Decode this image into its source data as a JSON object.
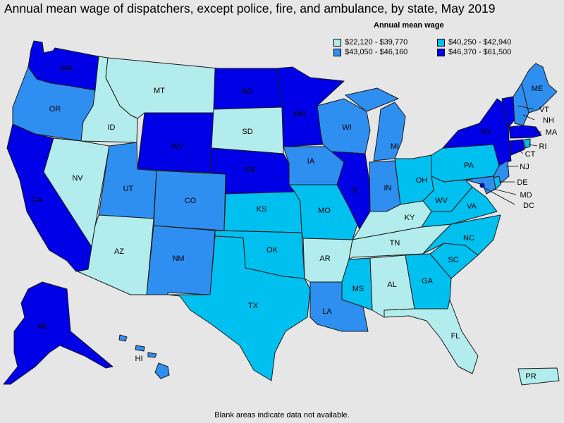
{
  "title": "Annual mean wage of dispatchers, except police, fire, and ambulance, by state, May 2019",
  "legend": {
    "title": "Annual mean wage",
    "items": [
      {
        "label": "$22,120 - $39,770",
        "color": "#b3ecec"
      },
      {
        "label": "$40,250 - $42,940",
        "color": "#00c0f0"
      },
      {
        "label": "$43,050 - $46,160",
        "color": "#2e8ff0"
      },
      {
        "label": "$46,370 - $61,500",
        "color": "#0000e6"
      }
    ]
  },
  "footnote": "Blank areas indicate data not available.",
  "states": {
    "WA": {
      "label": "WA",
      "bin": 3
    },
    "OR": {
      "label": "OR",
      "bin": 2
    },
    "CA": {
      "label": "CA",
      "bin": 3
    },
    "ID": {
      "label": "ID",
      "bin": 0
    },
    "NV": {
      "label": "NV",
      "bin": 0
    },
    "MT": {
      "label": "MT",
      "bin": 0
    },
    "WY": {
      "label": "WY",
      "bin": 3
    },
    "UT": {
      "label": "UT",
      "bin": 2
    },
    "AZ": {
      "label": "AZ",
      "bin": 0
    },
    "CO": {
      "label": "CO",
      "bin": 2
    },
    "NM": {
      "label": "NM",
      "bin": 2
    },
    "ND": {
      "label": "ND",
      "bin": 3
    },
    "SD": {
      "label": "SD",
      "bin": 0
    },
    "NE": {
      "label": "NE",
      "bin": 3
    },
    "KS": {
      "label": "KS",
      "bin": 1
    },
    "OK": {
      "label": "OK",
      "bin": 1
    },
    "TX": {
      "label": "TX",
      "bin": 1
    },
    "MN": {
      "label": "MN",
      "bin": 3
    },
    "IA": {
      "label": "IA",
      "bin": 2
    },
    "MO": {
      "label": "MO",
      "bin": 1
    },
    "AR": {
      "label": "AR",
      "bin": 0
    },
    "LA": {
      "label": "LA",
      "bin": 2
    },
    "WI": {
      "label": "WI",
      "bin": 2
    },
    "IL": {
      "label": "IL",
      "bin": 3
    },
    "MI": {
      "label": "MI",
      "bin": 2
    },
    "IN": {
      "label": "IN",
      "bin": 2
    },
    "OH": {
      "label": "OH",
      "bin": 1
    },
    "KY": {
      "label": "KY",
      "bin": 0
    },
    "TN": {
      "label": "TN",
      "bin": 0
    },
    "MS": {
      "label": "MS",
      "bin": 1
    },
    "AL": {
      "label": "AL",
      "bin": 0
    },
    "GA": {
      "label": "GA",
      "bin": 1
    },
    "FL": {
      "label": "FL",
      "bin": 0
    },
    "SC": {
      "label": "SC",
      "bin": 1
    },
    "NC": {
      "label": "NC",
      "bin": 1
    },
    "VA": {
      "label": "VA",
      "bin": 1
    },
    "WV": {
      "label": "WV",
      "bin": 1
    },
    "PA": {
      "label": "PA",
      "bin": 1
    },
    "NY": {
      "label": "NY",
      "bin": 3
    },
    "VT": {
      "label": "VT",
      "bin": 3
    },
    "NH": {
      "label": "NH",
      "bin": 2
    },
    "ME": {
      "label": "ME",
      "bin": 2
    },
    "MA": {
      "label": "MA",
      "bin": 3
    },
    "CT": {
      "label": "CT",
      "bin": 3
    },
    "RI": {
      "label": "RI",
      "bin": 1
    },
    "NJ": {
      "label": "NJ",
      "bin": 2
    },
    "DE": {
      "label": "DE",
      "bin": 1
    },
    "MD": {
      "label": "MD",
      "bin": 2
    },
    "DC": {
      "label": "DC",
      "bin": 3
    },
    "AK": {
      "label": "AK",
      "bin": 3
    },
    "HI": {
      "label": "HI",
      "bin": 2
    },
    "PR": {
      "label": "PR",
      "bin": 0
    }
  }
}
